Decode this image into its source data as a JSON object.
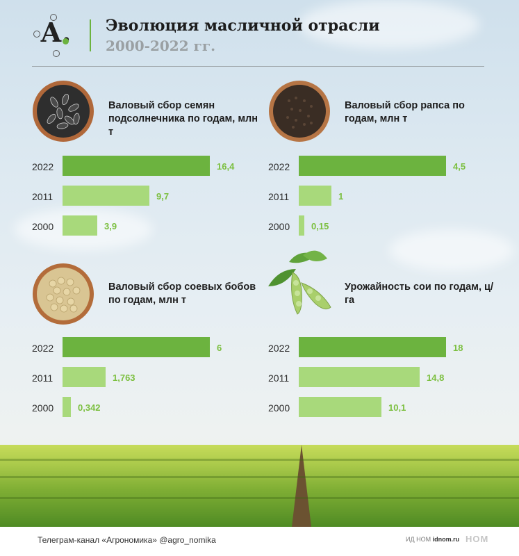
{
  "header": {
    "logo_letter": "А.",
    "title": "Эволюция масличной отрасли",
    "subtitle": "2000-2022 гг."
  },
  "colors": {
    "bar_2022": "#6cb33f",
    "bar_2011": "#a8d97b",
    "bar_2000": "#a8d97b",
    "value_label": "#7bbf3f",
    "title_rule": "#6cb33f"
  },
  "chart_data": [
    {
      "type": "bar",
      "orientation": "horizontal",
      "title": "Валовый сбор семян подсолнечника по годам, млн т",
      "categories": [
        "2022",
        "2011",
        "2000"
      ],
      "values": [
        16.4,
        9.7,
        3.9
      ],
      "value_labels": [
        "16,4",
        "9,7",
        "3,9"
      ],
      "icon": "sunflower-seeds-bowl-icon"
    },
    {
      "type": "bar",
      "orientation": "horizontal",
      "title": "Валовый сбор рапса по годам, млн т",
      "categories": [
        "2022",
        "2011",
        "2000"
      ],
      "values": [
        4.5,
        1,
        0.15
      ],
      "value_labels": [
        "4,5",
        "1",
        "0,15"
      ],
      "icon": "rapeseed-bowl-icon"
    },
    {
      "type": "bar",
      "orientation": "horizontal",
      "title": "Валовый сбор соевых бобов по годам, млн т",
      "categories": [
        "2022",
        "2011",
        "2000"
      ],
      "values": [
        6,
        1.763,
        0.342
      ],
      "value_labels": [
        "6",
        "1,763",
        "0,342"
      ],
      "icon": "soybeans-bowl-icon"
    },
    {
      "type": "bar",
      "orientation": "horizontal",
      "title": "Урожайность сои по годам, ц/га",
      "categories": [
        "2022",
        "2011",
        "2000"
      ],
      "values": [
        18,
        14.8,
        10.1
      ],
      "value_labels": [
        "18",
        "14,8",
        "10,1"
      ],
      "icon": "soybean-pod-icon"
    }
  ],
  "footer": {
    "telegram": "Телеграм-канал «Агрономика» @agro_nomika",
    "publisher_prefix": "ИД НОМ",
    "publisher_site": "idnom.ru",
    "brand": "НОМ"
  }
}
